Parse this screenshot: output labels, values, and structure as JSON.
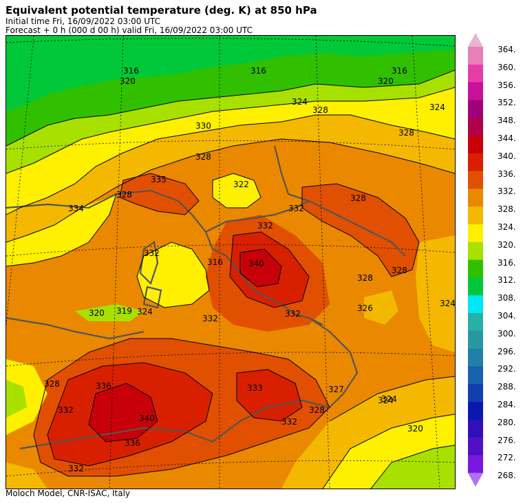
{
  "header": {
    "title": "Equivalent potential temperature (deg. K) at 850 hPa",
    "line2": "Initial time  Fri, 16/09/2022  03:00 UTC",
    "line3": "Forecast +   0 h  (000 d 00 h)  valid Fri, 16/09/2022 03:00 UTC"
  },
  "footer": "Moloch Model, CNR-ISAC, Italy",
  "colorbar": {
    "levels": [
      "364.",
      "360.",
      "356.",
      "352.",
      "348.",
      "344.",
      "340.",
      "336.",
      "332.",
      "328.",
      "324.",
      "320.",
      "316.",
      "312.",
      "308.",
      "304.",
      "300.",
      "296.",
      "292.",
      "288.",
      "284.",
      "280.",
      "276.",
      "272.",
      "268."
    ],
    "colors": [
      "#e8b4cc",
      "#e87fb7",
      "#e83ca5",
      "#c8109a",
      "#a0007a",
      "#b0004a",
      "#c8000a",
      "#d82000",
      "#e05000",
      "#ea8800",
      "#f4b800",
      "#fff000",
      "#a8e000",
      "#30c000",
      "#00c838",
      "#00e8f8",
      "#28b0a8",
      "#2898a0",
      "#2080a8",
      "#1860b0",
      "#1040b0",
      "#0818b0",
      "#3010b8",
      "#5010c8",
      "#7818e0",
      "#b070f0"
    ]
  },
  "map": {
    "contour_labels": [
      "316",
      "320",
      "316",
      "320",
      "316",
      "324",
      "328",
      "324",
      "328",
      "330",
      "328",
      "335",
      "328",
      "322",
      "334",
      "332",
      "332",
      "332",
      "328",
      "316",
      "340",
      "332",
      "328",
      "324",
      "320",
      "319",
      "324",
      "332",
      "326",
      "324",
      "336",
      "328",
      "332",
      "340",
      "336",
      "332",
      "333",
      "327",
      "328",
      "324",
      "320",
      "332",
      "328"
    ]
  }
}
